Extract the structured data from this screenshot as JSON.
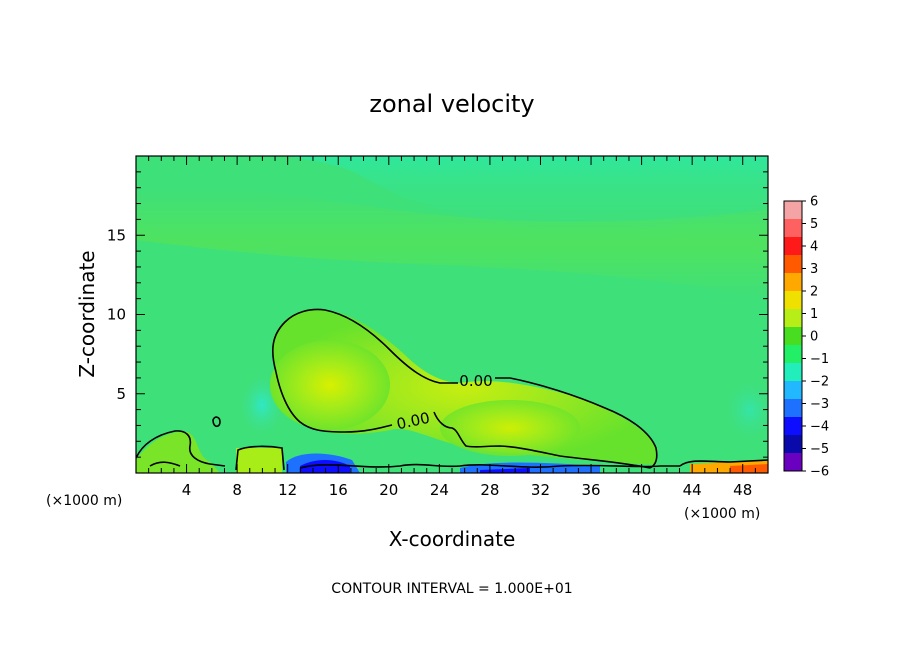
{
  "chart_data": {
    "type": "heatmap",
    "title": "zonal velocity",
    "xlabel": "X-coordinate",
    "ylabel": "Z-coordinate",
    "x_unit": "(×1000 m)",
    "x_unit_right": "(×1000 m)",
    "xlim": [
      0,
      50
    ],
    "ylim": [
      0,
      20
    ],
    "x_ticks": [
      4,
      8,
      12,
      16,
      20,
      24,
      28,
      32,
      36,
      40,
      44,
      48
    ],
    "x_tick_labels": [
      "4",
      "8",
      "12",
      "16",
      "20",
      "24",
      "28",
      "32",
      "36",
      "40",
      "44",
      "48"
    ],
    "y_ticks": [
      5,
      10,
      15
    ],
    "y_tick_labels": [
      "5",
      "10",
      "15"
    ],
    "colorbar": {
      "levels": [
        6,
        5,
        4,
        3,
        2,
        1,
        0,
        -1,
        -2,
        -3,
        -4,
        -5,
        -6
      ],
      "labels": [
        "6",
        "5",
        "4",
        "3",
        "2",
        "1",
        "0",
        "−1",
        "−2",
        "−3",
        "−4",
        "−5",
        "−6"
      ],
      "colors": [
        "#f4a4a4",
        "#ff6060",
        "#ff1a1a",
        "#ff5a00",
        "#ffa800",
        "#f0e000",
        "#b8ee18",
        "#48dd20",
        "#22ee66",
        "#22eebb",
        "#22b8ff",
        "#1e70ff",
        "#0d0dff",
        "#0a0aaa",
        "#6a00c0"
      ]
    },
    "contour_labels": [
      "0.00",
      "0.00"
    ],
    "footnote": "CONTOUR INTERVAL = 1.000E+01"
  }
}
